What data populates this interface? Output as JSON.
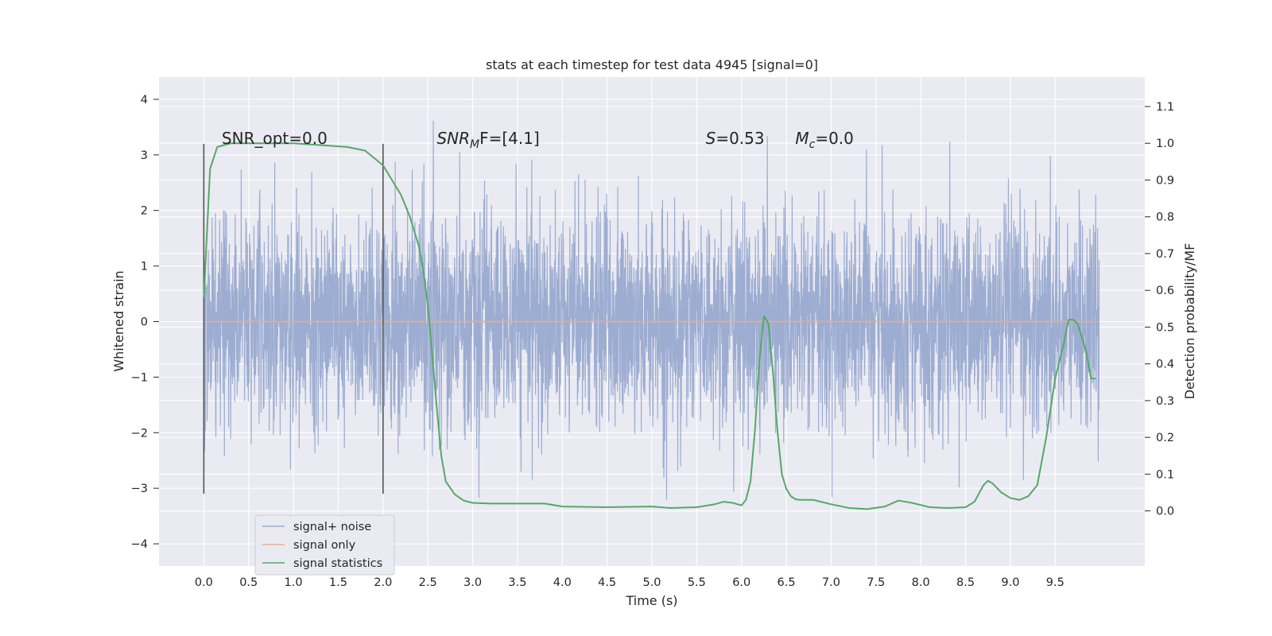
{
  "chart_data": {
    "type": "line",
    "title": "stats at each timestep for test data 4945 [signal=0]",
    "xlabel": "Time (s)",
    "ylabel": "Whitened strain",
    "y2label": "Detection probability/MF",
    "xlim": [
      -0.5,
      10.5
    ],
    "ylim": [
      -4.4,
      4.4
    ],
    "y2lim": [
      -0.15,
      1.18
    ],
    "xticks": [
      0.0,
      0.5,
      1.0,
      1.5,
      2.0,
      2.5,
      3.0,
      3.5,
      4.0,
      4.5,
      5.0,
      5.5,
      6.0,
      6.5,
      7.0,
      7.5,
      8.0,
      8.5,
      9.0,
      9.5
    ],
    "yticks": [
      -4,
      -3,
      -2,
      -1,
      0,
      1,
      2,
      3,
      4
    ],
    "y2ticks": [
      0.0,
      0.1,
      0.2,
      0.3,
      0.4,
      0.5,
      0.6,
      0.7,
      0.8,
      0.9,
      1.0,
      1.1
    ],
    "grid": true,
    "legend_position": "lower-left",
    "annotations": [
      {
        "pre": "SNR_opt=0.0",
        "it": "",
        "sub": "",
        "post": "",
        "x": 0.2
      },
      {
        "pre": "",
        "it": "SNR",
        "sub": "M",
        "post": "F=[4.1]",
        "x": 2.6
      },
      {
        "pre": "",
        "it": "S",
        "sub": "",
        "post": "=0.53",
        "x": 5.6
      },
      {
        "pre": "",
        "it": "M",
        "sub": "c",
        "post": "=0.0",
        "x": 6.6
      }
    ],
    "annotation_y": 3.2,
    "vlines": [
      {
        "x": 0.0,
        "ymin": -3.1,
        "ymax": 3.2
      },
      {
        "x": 2.0,
        "ymin": -3.1,
        "ymax": 3.2
      }
    ],
    "series": [
      {
        "name": "signal+ noise",
        "color": "#99aacf",
        "kind": "noise",
        "x_range": [
          0.0,
          9.99
        ],
        "sigma": 0.95,
        "seed": 4945,
        "amplitude_limit": 4.1
      },
      {
        "name": "signal only",
        "color": "#e8ab94",
        "kind": "flat",
        "x": [
          0.0,
          9.99
        ],
        "y": [
          0.0,
          0.0
        ]
      },
      {
        "name": "signal statistics",
        "color": "#55a868",
        "kind": "curve",
        "axis": "right",
        "x": [
          0.0,
          0.07,
          0.15,
          0.3,
          0.5,
          0.8,
          1.0,
          1.3,
          1.6,
          1.8,
          2.0,
          2.1,
          2.2,
          2.3,
          2.4,
          2.45,
          2.5,
          2.55,
          2.6,
          2.65,
          2.7,
          2.8,
          2.9,
          3.0,
          3.2,
          3.5,
          3.8,
          4.0,
          4.5,
          5.0,
          5.2,
          5.5,
          5.7,
          5.8,
          5.9,
          6.0,
          6.05,
          6.1,
          6.15,
          6.2,
          6.25,
          6.3,
          6.35,
          6.4,
          6.45,
          6.5,
          6.55,
          6.6,
          6.65,
          6.7,
          6.8,
          7.0,
          7.2,
          7.4,
          7.6,
          7.75,
          7.9,
          8.1,
          8.3,
          8.5,
          8.6,
          8.7,
          8.75,
          8.8,
          8.9,
          9.0,
          9.1,
          9.2,
          9.3,
          9.4,
          9.5,
          9.6,
          9.65,
          9.7,
          9.75,
          9.8,
          9.85,
          9.9,
          9.95
        ],
        "y": [
          0.58,
          0.93,
          0.99,
          1.0,
          1.0,
          1.0,
          1.0,
          0.995,
          0.99,
          0.98,
          0.94,
          0.9,
          0.86,
          0.8,
          0.72,
          0.65,
          0.56,
          0.42,
          0.28,
          0.15,
          0.08,
          0.045,
          0.028,
          0.022,
          0.02,
          0.02,
          0.02,
          0.012,
          0.01,
          0.012,
          0.008,
          0.01,
          0.018,
          0.025,
          0.022,
          0.015,
          0.03,
          0.08,
          0.22,
          0.41,
          0.53,
          0.51,
          0.38,
          0.22,
          0.1,
          0.06,
          0.04,
          0.032,
          0.03,
          0.03,
          0.03,
          0.018,
          0.008,
          0.005,
          0.012,
          0.028,
          0.022,
          0.01,
          0.008,
          0.01,
          0.025,
          0.07,
          0.082,
          0.075,
          0.05,
          0.035,
          0.03,
          0.04,
          0.07,
          0.2,
          0.36,
          0.46,
          0.52,
          0.52,
          0.51,
          0.47,
          0.43,
          0.36,
          0.36
        ]
      }
    ]
  }
}
